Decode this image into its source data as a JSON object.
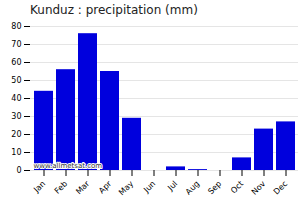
{
  "chart_data": {
    "type": "bar",
    "title": "Kunduz : precipitation (mm)",
    "categories": [
      "Jan",
      "Feb",
      "Mar",
      "Apr",
      "May",
      "Jun",
      "Jul",
      "Aug",
      "Sep",
      "Oct",
      "Nov",
      "Dec"
    ],
    "values": [
      44,
      56,
      76,
      55,
      29,
      0,
      2,
      0.5,
      0,
      7,
      23,
      27
    ],
    "color": "#0000dd",
    "ylim": [
      0,
      80
    ],
    "yticks": [
      0,
      10,
      20,
      30,
      40,
      50,
      60,
      70,
      80
    ],
    "grid": true,
    "annotation": "www.allmetsat.com"
  }
}
